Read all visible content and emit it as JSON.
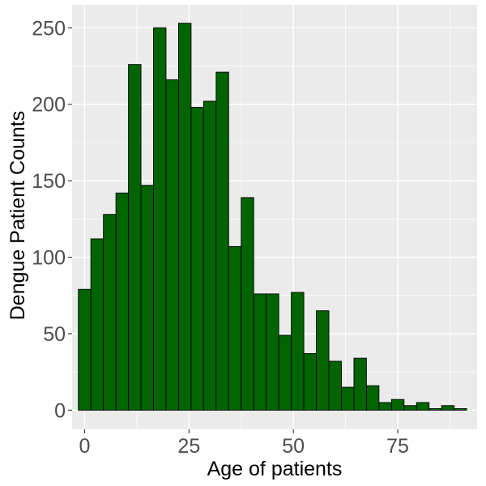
{
  "chart_data": {
    "type": "bar",
    "subtype": "histogram",
    "xlabel": "Age of patients",
    "ylabel": "Dengue Patient Counts",
    "xlim": [
      -3,
      94
    ],
    "ylim": [
      -12.5,
      265
    ],
    "x_ticks": [
      0,
      25,
      50,
      75
    ],
    "y_ticks": [
      0,
      50,
      100,
      150,
      200,
      250
    ],
    "bin_width": 3,
    "bins": [
      {
        "x0": -1.5,
        "x1": 1.5,
        "count": 79
      },
      {
        "x0": 1.5,
        "x1": 4.5,
        "count": 112
      },
      {
        "x0": 4.5,
        "x1": 7.5,
        "count": 128
      },
      {
        "x0": 7.5,
        "x1": 10.5,
        "count": 142
      },
      {
        "x0": 10.5,
        "x1": 13.5,
        "count": 226
      },
      {
        "x0": 13.5,
        "x1": 16.5,
        "count": 147
      },
      {
        "x0": 16.5,
        "x1": 19.5,
        "count": 250
      },
      {
        "x0": 19.5,
        "x1": 22.5,
        "count": 216
      },
      {
        "x0": 22.5,
        "x1": 25.5,
        "count": 253
      },
      {
        "x0": 25.5,
        "x1": 28.5,
        "count": 198
      },
      {
        "x0": 28.5,
        "x1": 31.5,
        "count": 202
      },
      {
        "x0": 31.5,
        "x1": 34.5,
        "count": 221
      },
      {
        "x0": 34.5,
        "x1": 37.5,
        "count": 107
      },
      {
        "x0": 37.5,
        "x1": 40.5,
        "count": 139
      },
      {
        "x0": 40.5,
        "x1": 43.5,
        "count": 76
      },
      {
        "x0": 43.5,
        "x1": 46.5,
        "count": 76
      },
      {
        "x0": 46.5,
        "x1": 49.5,
        "count": 49
      },
      {
        "x0": 49.5,
        "x1": 52.5,
        "count": 77
      },
      {
        "x0": 52.5,
        "x1": 55.5,
        "count": 37
      },
      {
        "x0": 55.5,
        "x1": 58.5,
        "count": 65
      },
      {
        "x0": 58.5,
        "x1": 61.5,
        "count": 32
      },
      {
        "x0": 61.5,
        "x1": 64.5,
        "count": 15
      },
      {
        "x0": 64.5,
        "x1": 67.5,
        "count": 34
      },
      {
        "x0": 67.5,
        "x1": 70.5,
        "count": 16
      },
      {
        "x0": 70.5,
        "x1": 73.5,
        "count": 5
      },
      {
        "x0": 73.5,
        "x1": 76.5,
        "count": 7
      },
      {
        "x0": 76.5,
        "x1": 79.5,
        "count": 3
      },
      {
        "x0": 79.5,
        "x1": 82.5,
        "count": 5
      },
      {
        "x0": 82.5,
        "x1": 85.5,
        "count": 1
      },
      {
        "x0": 85.5,
        "x1": 88.5,
        "count": 3
      },
      {
        "x0": 88.5,
        "x1": 91.5,
        "count": 1
      }
    ],
    "grid": true,
    "colors": {
      "bar_fill": "#006400",
      "bar_outline": "#000000",
      "panel_background": "#ebebeb",
      "grid_line": "#ffffff"
    }
  }
}
